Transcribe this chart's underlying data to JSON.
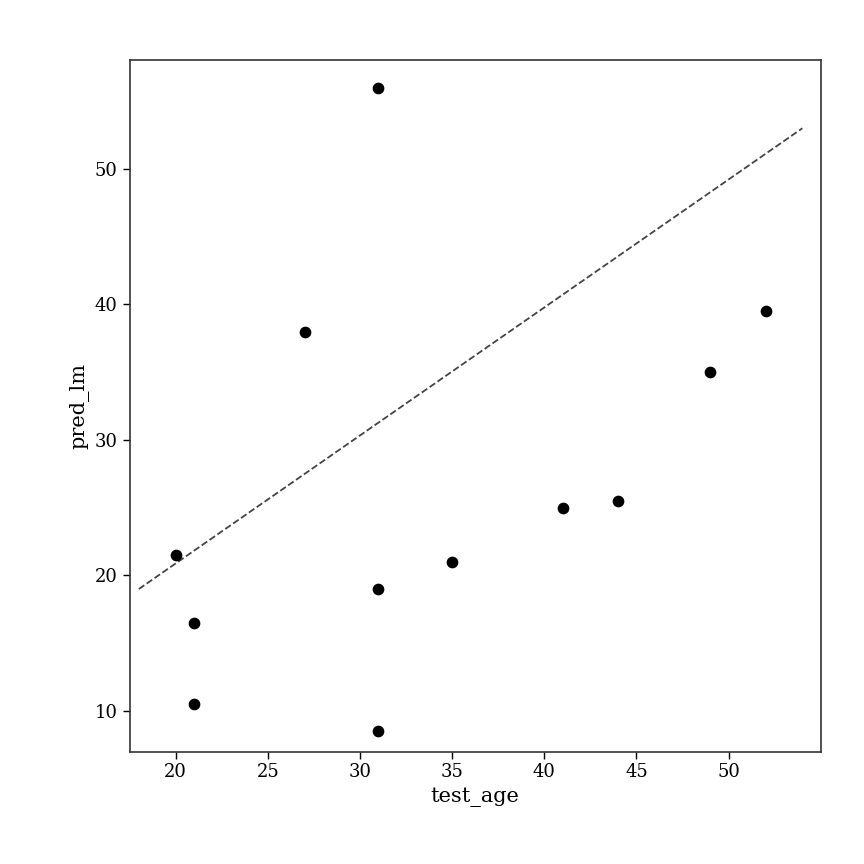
{
  "x": [
    20,
    21,
    21,
    27,
    31,
    31,
    31,
    35,
    41,
    44,
    49,
    52
  ],
  "y": [
    21.5,
    16.5,
    10.5,
    38,
    56,
    19,
    8.5,
    21,
    25,
    25.5,
    35,
    39.5
  ],
  "dashed_line_x": [
    18,
    54
  ],
  "dashed_line_y": [
    19,
    53
  ],
  "xlabel": "test_age",
  "ylabel": "pred_lm",
  "xlim": [
    17.5,
    55
  ],
  "ylim": [
    7,
    58
  ],
  "xticks": [
    20,
    25,
    30,
    35,
    40,
    45,
    50
  ],
  "yticks": [
    10,
    20,
    30,
    40,
    50
  ],
  "dot_color": "#000000",
  "dot_size": 55,
  "background_color": "#ffffff",
  "line_color": "#444444"
}
